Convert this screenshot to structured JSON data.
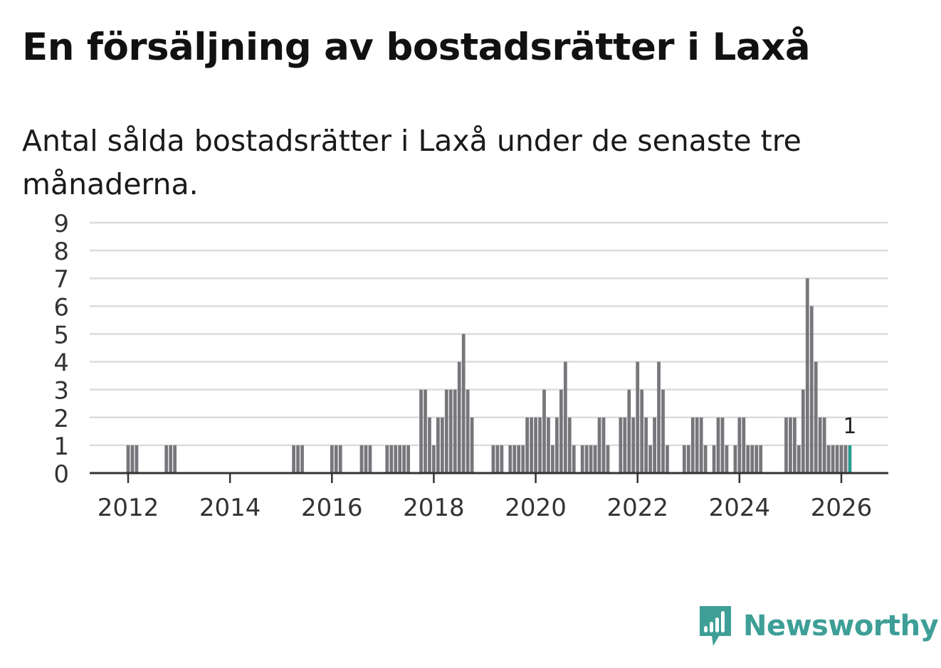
{
  "title": "En försäljning av bostadsrätter i Laxå",
  "subtitle": "Antal sålda bostadsrätter i Laxå under de senaste tre månaderna.",
  "brand": {
    "name": "Newsworthy",
    "color": "#3e9f97",
    "icon": "newsworthy-logo-icon"
  },
  "chart_data": {
    "type": "bar",
    "title": "",
    "xlabel": "",
    "ylabel": "",
    "ylim": [
      0,
      9
    ],
    "yticks": [
      "0",
      "1",
      "2",
      "3",
      "4",
      "5",
      "6",
      "7",
      "8",
      "9"
    ],
    "xticks": [
      "2012",
      "2014",
      "2016",
      "2018",
      "2020",
      "2022",
      "2024",
      "2026"
    ],
    "grid": true,
    "bar_color": "#77767b",
    "highlight_color": "#2a9d8f",
    "highlight_label": "1",
    "series": [
      {
        "values": [
          [
            "2012-01",
            1
          ],
          [
            "2012-02",
            1
          ],
          [
            "2012-03",
            1
          ],
          [
            "2012-10",
            1
          ],
          [
            "2012-11",
            1
          ],
          [
            "2012-12",
            1
          ],
          [
            "2015-04",
            1
          ],
          [
            "2015-05",
            1
          ],
          [
            "2015-06",
            1
          ],
          [
            "2016-01",
            1
          ],
          [
            "2016-02",
            1
          ],
          [
            "2016-03",
            1
          ],
          [
            "2016-08",
            1
          ],
          [
            "2016-09",
            1
          ],
          [
            "2016-10",
            1
          ],
          [
            "2017-02",
            1
          ],
          [
            "2017-03",
            1
          ],
          [
            "2017-04",
            1
          ],
          [
            "2017-05",
            1
          ],
          [
            "2017-06",
            1
          ],
          [
            "2017-07",
            1
          ],
          [
            "2017-10",
            3
          ],
          [
            "2017-11",
            3
          ],
          [
            "2017-12",
            2
          ],
          [
            "2018-01",
            1
          ],
          [
            "2018-02",
            2
          ],
          [
            "2018-03",
            2
          ],
          [
            "2018-04",
            3
          ],
          [
            "2018-05",
            3
          ],
          [
            "2018-06",
            3
          ],
          [
            "2018-07",
            4
          ],
          [
            "2018-08",
            5
          ],
          [
            "2018-09",
            3
          ],
          [
            "2018-10",
            2
          ],
          [
            "2019-03",
            1
          ],
          [
            "2019-04",
            1
          ],
          [
            "2019-05",
            1
          ],
          [
            "2019-07",
            1
          ],
          [
            "2019-08",
            1
          ],
          [
            "2019-09",
            1
          ],
          [
            "2019-10",
            1
          ],
          [
            "2019-11",
            2
          ],
          [
            "2019-12",
            2
          ],
          [
            "2020-01",
            2
          ],
          [
            "2020-02",
            2
          ],
          [
            "2020-03",
            3
          ],
          [
            "2020-04",
            2
          ],
          [
            "2020-05",
            1
          ],
          [
            "2020-06",
            2
          ],
          [
            "2020-07",
            3
          ],
          [
            "2020-08",
            4
          ],
          [
            "2020-09",
            2
          ],
          [
            "2020-10",
            1
          ],
          [
            "2020-12",
            1
          ],
          [
            "2021-01",
            1
          ],
          [
            "2021-02",
            1
          ],
          [
            "2021-03",
            1
          ],
          [
            "2021-04",
            2
          ],
          [
            "2021-05",
            2
          ],
          [
            "2021-06",
            1
          ],
          [
            "2021-09",
            2
          ],
          [
            "2021-10",
            2
          ],
          [
            "2021-11",
            3
          ],
          [
            "2021-12",
            2
          ],
          [
            "2022-01",
            4
          ],
          [
            "2022-02",
            3
          ],
          [
            "2022-03",
            2
          ],
          [
            "2022-04",
            1
          ],
          [
            "2022-05",
            2
          ],
          [
            "2022-06",
            4
          ],
          [
            "2022-07",
            3
          ],
          [
            "2022-08",
            1
          ],
          [
            "2022-12",
            1
          ],
          [
            "2023-01",
            1
          ],
          [
            "2023-02",
            2
          ],
          [
            "2023-03",
            2
          ],
          [
            "2023-04",
            2
          ],
          [
            "2023-05",
            1
          ],
          [
            "2023-07",
            1
          ],
          [
            "2023-08",
            2
          ],
          [
            "2023-09",
            2
          ],
          [
            "2023-10",
            1
          ],
          [
            "2023-12",
            1
          ],
          [
            "2024-01",
            2
          ],
          [
            "2024-02",
            2
          ],
          [
            "2024-03",
            1
          ],
          [
            "2024-04",
            1
          ],
          [
            "2024-05",
            1
          ],
          [
            "2024-06",
            1
          ],
          [
            "2024-12",
            2
          ],
          [
            "2025-01",
            2
          ],
          [
            "2025-02",
            2
          ],
          [
            "2025-03",
            1
          ],
          [
            "2025-04",
            3
          ],
          [
            "2025-05",
            7
          ],
          [
            "2025-06",
            6
          ],
          [
            "2025-07",
            4
          ],
          [
            "2025-08",
            2
          ],
          [
            "2025-09",
            2
          ],
          [
            "2025-10",
            1
          ],
          [
            "2025-11",
            1
          ],
          [
            "2025-12",
            1
          ],
          [
            "2026-01",
            1
          ],
          [
            "2026-02",
            1
          ],
          [
            "2026-03",
            1
          ]
        ]
      }
    ]
  }
}
